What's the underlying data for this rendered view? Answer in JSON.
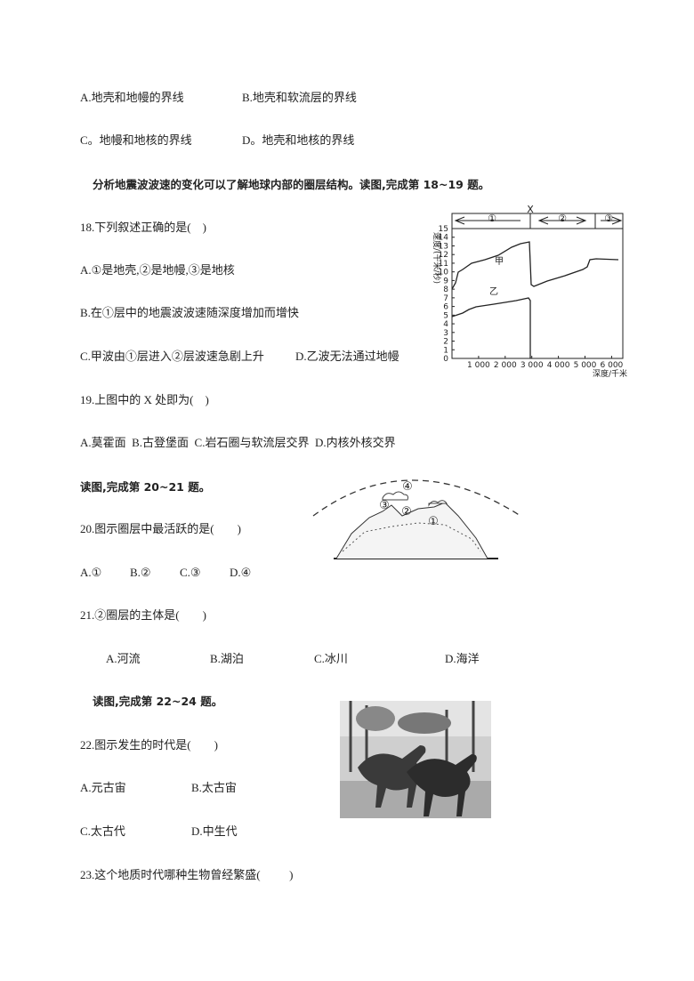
{
  "q17": {
    "options": [
      "A.地壳和地幔的界线",
      "B.地壳和软流层的界线",
      "C。地幔和地核的界线",
      "D。地壳和地核的界线"
    ]
  },
  "section_18_19": "分析地震波波速的变化可以了解地球内部的圈层结构。读图,完成第 18~19 题。",
  "q18": {
    "stem": "18.下列叙述正确的是(    )",
    "options": [
      "A.①是地壳,②是地幔,③是地核",
      "B.在①层中的地震波波速随深度增加而增快",
      "C.甲波由①层进入②层波速急剧上升",
      "D.乙波无法通过地幔"
    ]
  },
  "figure_1": {
    "layers": [
      "①",
      "X",
      "②",
      "③"
    ],
    "y_label": "速度/(千米/秒)",
    "x_label": "深度/千米",
    "curves": [
      "甲",
      "乙"
    ],
    "yticks": [
      "0",
      "1",
      "2",
      "3",
      "4",
      "5",
      "6",
      "7",
      "8",
      "9",
      "10",
      "11",
      "12",
      "13",
      "14",
      "15"
    ],
    "xticks": [
      "1 000",
      "2 000",
      "3 000",
      "4 000",
      "5 000",
      "6 000"
    ]
  },
  "q19": {
    "stem": "19.上图中的 X 处即为(    )",
    "options": "A.莫霍面  B.古登堡面  C.岩石圈与软流层交界  D.内核外核交界"
  },
  "section_20_21": "读图,完成第 20~21 题。",
  "figure_2": {
    "labels": [
      "①",
      "②",
      "③",
      "④"
    ]
  },
  "q20": {
    "stem": "20.图示圈层中最活跃的是(        )",
    "options": [
      "A.①",
      "B.②",
      "C.③",
      "D.④"
    ]
  },
  "q21": {
    "stem": "21.②圈层的主体是(        )",
    "options": [
      "A.河流",
      "B.湖泊",
      "C.冰川",
      "D.海洋"
    ]
  },
  "section_22_24": "读图,完成第 22~24 题。",
  "q22": {
    "stem": "22.图示发生的时代是(        )",
    "options": [
      "A.元古宙",
      "B.太古宙",
      "C.太古代",
      "D.中生代"
    ]
  },
  "q23": {
    "stem": "23.这个地质时代哪种生物曾经繁盛(          )"
  }
}
